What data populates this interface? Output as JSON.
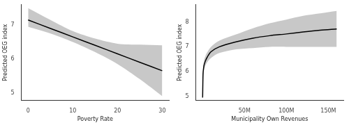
{
  "chart_data": [
    {
      "type": "line",
      "x_label": "Poverty Rate",
      "y_label": "Predicted OEG index",
      "x": [
        0,
        5,
        10,
        15,
        20,
        25,
        30
      ],
      "values": [
        7.15,
        6.9,
        6.65,
        6.4,
        6.15,
        5.9,
        5.65
      ],
      "ci_lower": [
        6.95,
        6.75,
        6.5,
        6.2,
        5.85,
        5.4,
        4.9
      ],
      "ci_upper": [
        7.5,
        7.15,
        6.82,
        6.6,
        6.45,
        6.42,
        6.4
      ],
      "color": "#000000",
      "xlim": [
        -1.5,
        31.5
      ],
      "xticks": [
        0,
        10,
        20,
        30
      ],
      "ylim": [
        4.77,
        7.6
      ],
      "yticks": [
        5,
        6,
        7
      ],
      "grid": false
    },
    {
      "type": "line",
      "x_label": "Municipality Own Revenues",
      "y_label": "Predicted OEG index",
      "x": [
        0,
        500000,
        1000000,
        2000000,
        5000000,
        10000000,
        20000000,
        40000000,
        60000000,
        80000000,
        100000000,
        120000000,
        140000000,
        160000000
      ],
      "values": [
        4.95,
        5.9,
        6.1,
        6.3,
        6.55,
        6.8,
        7.0,
        7.2,
        7.35,
        7.45,
        7.52,
        7.6,
        7.67,
        7.72
      ],
      "ci_lower": [
        4.9,
        5.7,
        5.9,
        6.1,
        6.35,
        6.55,
        6.75,
        6.9,
        6.95,
        7.0,
        7.0,
        7.0,
        7.0,
        7.0
      ],
      "ci_upper": [
        5.0,
        6.1,
        6.3,
        6.5,
        6.75,
        7.0,
        7.25,
        7.5,
        7.75,
        7.95,
        8.1,
        8.25,
        8.35,
        8.45
      ],
      "color": "#000000",
      "xlim": [
        -8000000,
        168000000
      ],
      "xticks": [
        {
          "value": 50000000,
          "label": "50M"
        },
        {
          "value": 100000000,
          "label": "100M"
        },
        {
          "value": 150000000,
          "label": "150M"
        }
      ],
      "ylim": [
        4.83,
        8.7
      ],
      "yticks": [
        5,
        6,
        7,
        8
      ],
      "grid": false
    }
  ]
}
